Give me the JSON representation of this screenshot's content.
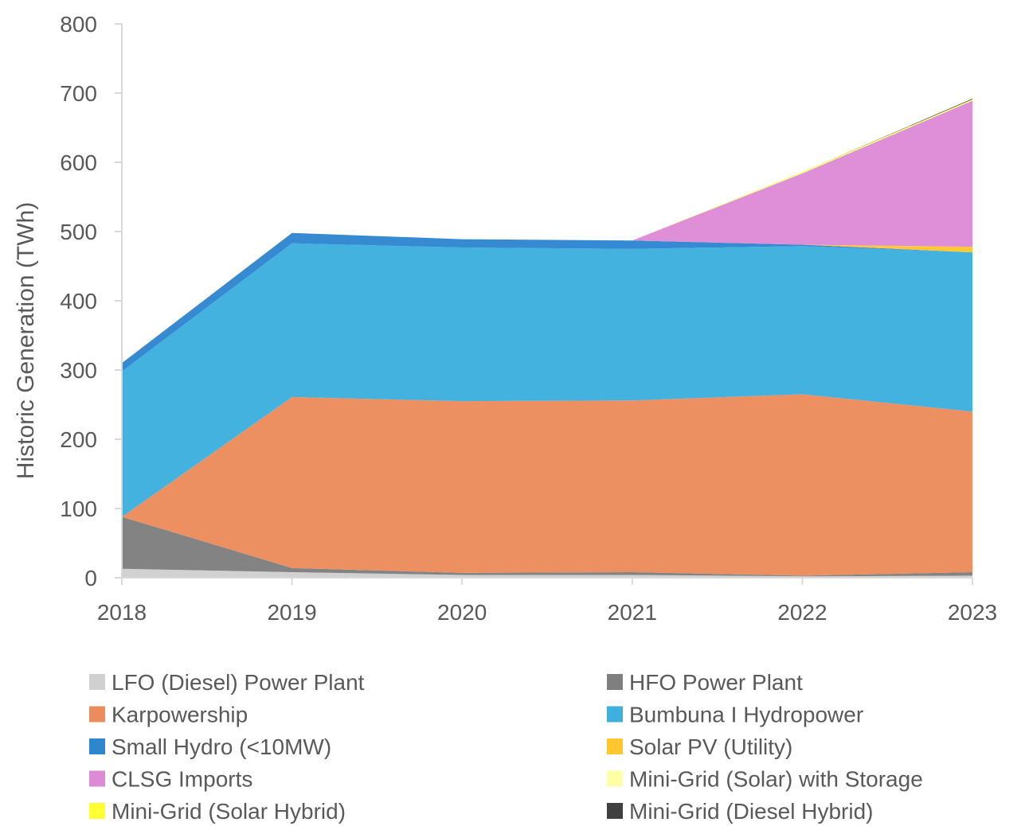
{
  "chart_data": {
    "type": "area",
    "stacked": true,
    "title": "",
    "xlabel": "",
    "ylabel": "Historic Generation (TWh)",
    "ylim": [
      0,
      800
    ],
    "yticks": [
      0,
      100,
      200,
      300,
      400,
      500,
      600,
      700,
      800
    ],
    "x": [
      "2018",
      "2019",
      "2020",
      "2021",
      "2022",
      "2023"
    ],
    "grid": false,
    "legend_position": "bottom",
    "series": [
      {
        "name": "LFO (Diesel) Power Plant",
        "color": "#D0D0D0",
        "values": [
          13,
          8,
          4,
          4,
          2,
          3
        ]
      },
      {
        "name": "HFO Power Plant",
        "color": "#7F7F7F",
        "values": [
          75,
          6,
          3,
          4,
          1,
          5
        ]
      },
      {
        "name": "Karpowership",
        "color": "#EC8C5C",
        "values": [
          0,
          247,
          248,
          248,
          262,
          232
        ]
      },
      {
        "name": "Bumbuna I Hydropower",
        "color": "#3DB0DE",
        "values": [
          210,
          222,
          222,
          219,
          214,
          230
        ]
      },
      {
        "name": "Small Hydro (<10MW)",
        "color": "#2E86CF",
        "values": [
          12,
          15,
          12,
          12,
          2,
          0
        ]
      },
      {
        "name": "Solar PV (Utility)",
        "color": "#FFC630",
        "values": [
          0,
          0,
          0,
          0,
          0,
          8
        ]
      },
      {
        "name": "CLSG Imports",
        "color": "#DE8BD6",
        "values": [
          0,
          0,
          0,
          0,
          103,
          211
        ]
      },
      {
        "name": "Mini-Grid (Solar) with Storage",
        "color": "#FFFFA8",
        "values": [
          0,
          0,
          0,
          0,
          1,
          1
        ]
      },
      {
        "name": "Mini-Grid (Solar Hybrid)",
        "color": "#FFFF33",
        "values": [
          0,
          0,
          0,
          0,
          1,
          1
        ]
      },
      {
        "name": "Mini-Grid (Diesel Hybrid)",
        "color": "#404040",
        "values": [
          0,
          0,
          0,
          0,
          0,
          1
        ]
      }
    ],
    "axis_color": "#D9D9D9",
    "text_color": "#595959"
  }
}
